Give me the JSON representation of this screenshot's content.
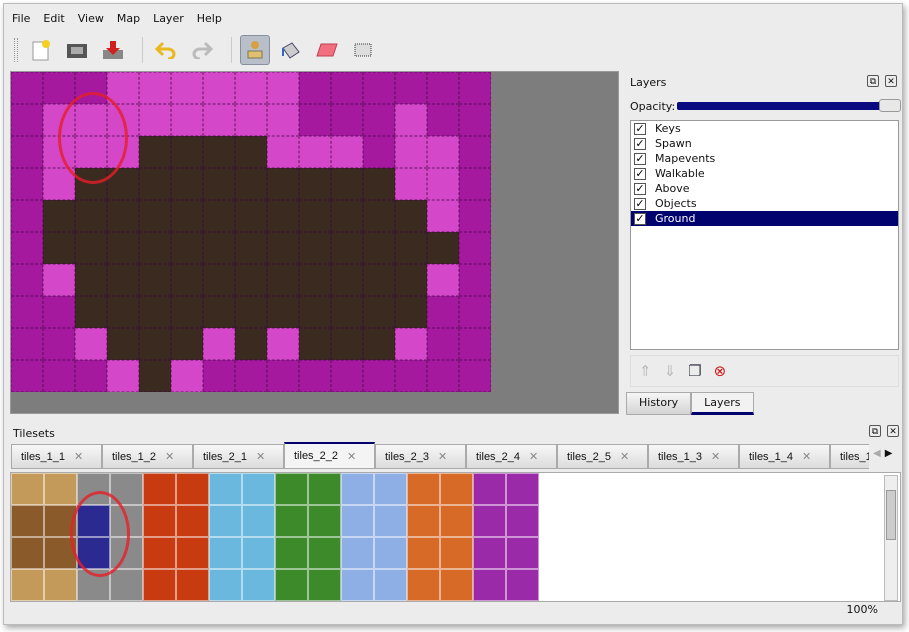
{
  "menu": [
    "File",
    "Edit",
    "View",
    "Map",
    "Layer",
    "Help"
  ],
  "toolbar": {
    "icons": [
      "new-file-icon",
      "open-icon",
      "save-icon",
      "undo-icon",
      "redo-icon",
      "stamp-brush-icon",
      "bucket-fill-icon",
      "eraser-icon",
      "rect-select-icon"
    ],
    "active": "stamp-brush-icon"
  },
  "map": {
    "colors": {
      "M": "#a5199f",
      "L": "#d347c8",
      "D": "#3b2a1f"
    },
    "rows": [
      "MMMLLLLLLMMMMMM",
      "MLLLLLLLLMMMLMM",
      "MLLLDDDDLLLMLLM",
      "MLDDDDDDDDDDLLM",
      "MDDDDDDDDDDDDLM",
      "MDDDDDDDDDDDDDM",
      "MLDDDDDDDDDDDLM",
      "MMDDDDDDDDDDDMM",
      "MMLDDDLDLDDDLMM",
      "MMMLDLMMMMMMMMM"
    ]
  },
  "layers": {
    "title": "Layers",
    "opacity_label": "Opacity:",
    "opacity": 1.0,
    "items": [
      {
        "name": "Keys",
        "visible": true
      },
      {
        "name": "Spawn",
        "visible": true
      },
      {
        "name": "Mapevents",
        "visible": true
      },
      {
        "name": "Walkable",
        "visible": true
      },
      {
        "name": "Above",
        "visible": true
      },
      {
        "name": "Objects",
        "visible": true
      },
      {
        "name": "Ground",
        "visible": true,
        "selected": true
      }
    ],
    "tabs": [
      "History",
      "Layers"
    ],
    "active_tab": "Layers"
  },
  "tilesets": {
    "title": "Tilesets",
    "tabs": [
      "tiles_1_1",
      "tiles_1_2",
      "tiles_2_1",
      "tiles_2_2",
      "tiles_2_3",
      "tiles_2_4",
      "tiles_2_5",
      "tiles_1_3",
      "tiles_1_4",
      "tiles_1_"
    ],
    "active": "tiles_2_2",
    "columns": [
      "#c49a5a",
      "#c49a5a",
      "#8a8a8a",
      "#8a8a8a",
      "#c83a10",
      "#c83a10",
      "#6ab8dd",
      "#6ab8dd",
      "#3d8a2a",
      "#3d8a2a",
      "#8eaee6",
      "#8eaee6",
      "#d86a28",
      "#d86a28",
      "#9a2aa8",
      "#9a2aa8"
    ],
    "highlight_color": "#2a2a90"
  },
  "status": {
    "zoom": "100%"
  }
}
